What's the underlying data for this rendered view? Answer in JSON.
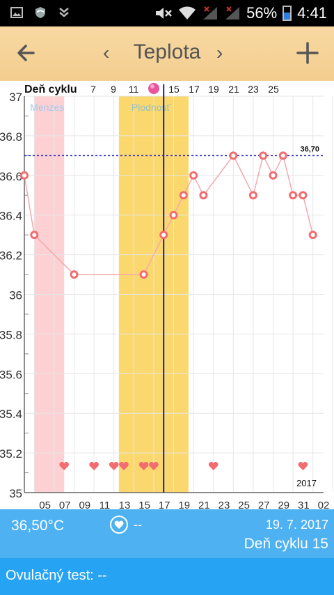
{
  "status": {
    "battery": "56%",
    "time": "4:41",
    "battery_level": 0.56
  },
  "toolbar": {
    "title": "Teplota",
    "prev_icon": "chevron-left",
    "next_icon": "chevron-right",
    "back_icon": "arrow-left",
    "add_icon": "plus"
  },
  "chart_data": {
    "type": "line",
    "header_label": "Deň cyklu",
    "cycle_ticks": [
      "7",
      "9",
      "11",
      "15",
      "17",
      "19",
      "21",
      "23",
      "25"
    ],
    "x_labels": [
      "05",
      "07",
      "09",
      "11",
      "13",
      "15",
      "17",
      "19",
      "21",
      "23",
      "25",
      "27",
      "29",
      "31",
      "02"
    ],
    "y_labels": [
      "37",
      "36.8",
      "36.6",
      "36.4",
      "36.2",
      "36",
      "35.8",
      "35.6",
      "35.4",
      "35.2",
      "35"
    ],
    "ylim": [
      35,
      37
    ],
    "threshold": {
      "value": 36.7,
      "label": "36,70"
    },
    "bands": [
      {
        "label": "Menzes",
        "from": 4,
        "to": 7,
        "color": "#fdd1d3",
        "label_color": "#a8c9ea"
      },
      {
        "label": "Plodnosť",
        "from": 12.5,
        "to": 19.5,
        "color": "#fbd86d",
        "label_color": "#94c0c8"
      }
    ],
    "current_day": 17,
    "year_label": "2017",
    "series": [
      {
        "values": [
          [
            3,
            36.6
          ],
          [
            4,
            36.3
          ],
          [
            8,
            36.1
          ],
          [
            15,
            36.1
          ],
          [
            17,
            36.3
          ],
          [
            18,
            36.4
          ],
          [
            19,
            36.5
          ],
          [
            20,
            36.6
          ],
          [
            21,
            36.5
          ],
          [
            24,
            36.7
          ],
          [
            26,
            36.5
          ],
          [
            27,
            36.7
          ],
          [
            28,
            36.6
          ],
          [
            29,
            36.7
          ],
          [
            30,
            36.5
          ],
          [
            31,
            36.5
          ],
          [
            32,
            36.3
          ]
        ]
      }
    ],
    "heart_days": [
      7,
      10,
      12,
      13,
      15,
      16,
      22,
      31
    ],
    "colors": {
      "line": "#f4a8ab",
      "point": "#f26c70",
      "threshold": "#1a1acc",
      "current": "#1a1aa0"
    }
  },
  "info": {
    "temperature": "36,50°C",
    "heart_value": "--",
    "date": "19. 7. 2017",
    "cycle_day": "Deň cyklu 15"
  },
  "ovulation": {
    "text": "Ovulačný test: --"
  }
}
